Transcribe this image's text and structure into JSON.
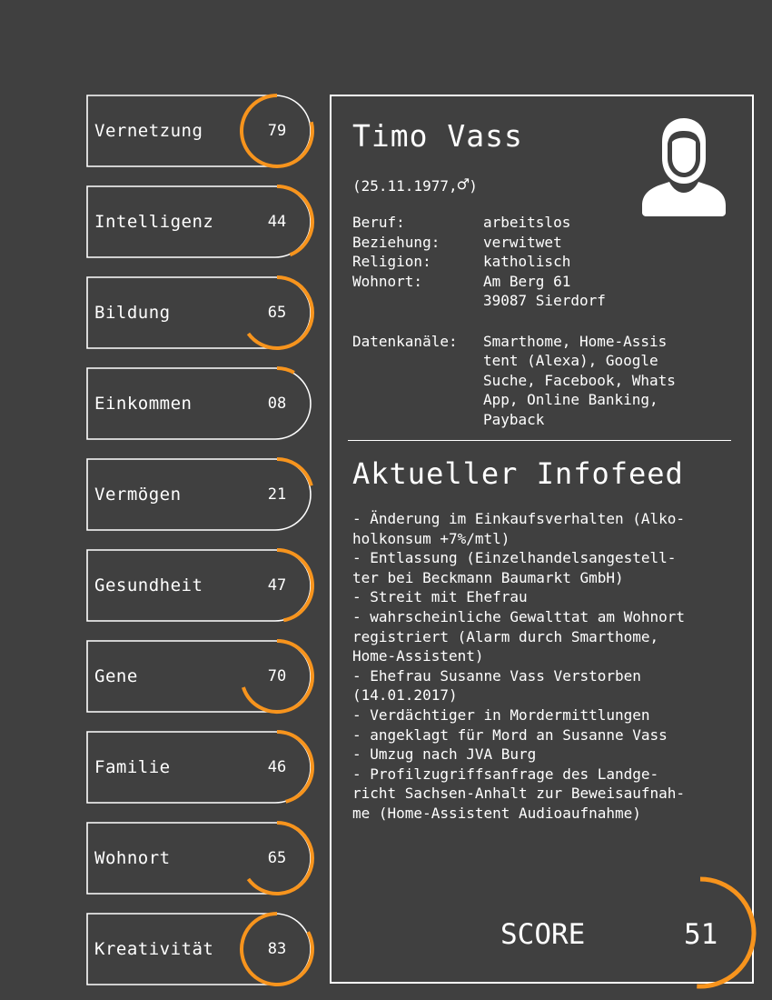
{
  "metrics": [
    {
      "label": "Vernetzung",
      "value": "79",
      "level": 79,
      "arc": "left"
    },
    {
      "label": "Intelligenz",
      "value": "44",
      "level": 44,
      "arc": "right"
    },
    {
      "label": "Bildung",
      "value": "65",
      "level": 65,
      "arc": "right"
    },
    {
      "label": "Einkommen",
      "value": "08",
      "level": 8,
      "arc": "right"
    },
    {
      "label": "Vermögen",
      "value": "21",
      "level": 21,
      "arc": "right"
    },
    {
      "label": "Gesundheit",
      "value": "47",
      "level": 47,
      "arc": "right"
    },
    {
      "label": "Gene",
      "value": "70",
      "level": 70,
      "arc": "right"
    },
    {
      "label": "Familie",
      "value": "46",
      "level": 46,
      "arc": "right"
    },
    {
      "label": "Wohnort",
      "value": "65",
      "level": 65,
      "arc": "right"
    },
    {
      "label": "Kreativität",
      "value": "83",
      "level": 83,
      "arc": "left"
    }
  ],
  "profile": {
    "name": "Timo Vass",
    "birth": "(25.11.1977,",
    "gender_symbol": "♂",
    "birth_close": ")",
    "facts": [
      {
        "key": "Beruf:",
        "value": "arbeitslos"
      },
      {
        "key": "Beziehung:",
        "value": "verwitwet"
      },
      {
        "key": "Religion:",
        "value": "katholisch"
      },
      {
        "key": "Wohnort:",
        "value": "Am Berg 61\n39087 Sierdorf"
      }
    ],
    "channels_key": "Datenkanäle:",
    "channels_value": "Smarthome, Home-Assis\ntent (Alexa), Google\nSuche, Facebook, Whats\nApp, Online Banking,\nPayback",
    "avatar_icon": "user-silhouette-icon"
  },
  "feed": {
    "title": "Aktueller Infofeed",
    "lines": [
      "- Änderung im Einkaufsverhalten (Alko-",
      "holkonsum +7%/mtl)",
      "- Entlassung (Einzelhandelsangestell-",
      "ter bei Beckmann Baumarkt GmbH)",
      "- Streit mit Ehefrau",
      "- wahrscheinliche Gewalttat am Wohnort",
      "registriert (Alarm durch Smarthome,",
      "Home-Assistent)",
      "- Ehefrau Susanne Vass Verstorben",
      "(14.01.2017)",
      "- Verdächtiger in Mordermittlungen",
      "- angeklagt für Mord an Susanne Vass",
      "- Umzug nach JVA Burg",
      "- Profilzugriffsanfrage des Landge-",
      "richt Sachsen-Anhalt zur Beweisaufnah-",
      "me (Home-Assistent Audioaufnahme)"
    ]
  },
  "score": {
    "label": "SCORE",
    "value": "51",
    "level": 51
  },
  "colors": {
    "accent": "#f7941d",
    "background": "#404040",
    "line": "#ffffff"
  }
}
